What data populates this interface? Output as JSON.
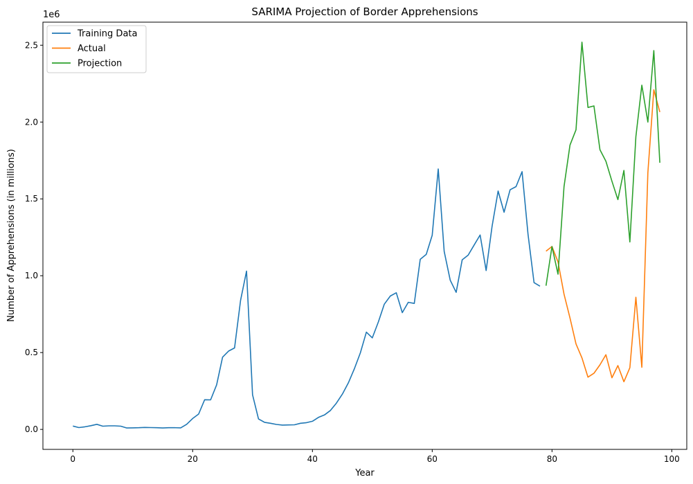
{
  "chart_data": {
    "type": "line",
    "title": "SARIMA Projection of Border Apprehensions",
    "xlabel": "Year",
    "ylabel": "Number of Apprehensions (in millions)",
    "y_offset_label": "1e6",
    "xlim": [
      -5,
      102.5
    ],
    "ylim": [
      -130000,
      2650000
    ],
    "xticks": [
      0,
      20,
      40,
      60,
      80,
      100
    ],
    "xtick_labels": [
      "0",
      "20",
      "40",
      "60",
      "80",
      "100"
    ],
    "yticks": [
      0,
      500000,
      1000000,
      1500000,
      2000000,
      2500000
    ],
    "ytick_labels": [
      "0.0",
      "0.5",
      "1.0",
      "1.5",
      "2.0",
      "2.5"
    ],
    "legend_position": "upper-left",
    "grid": false,
    "series": [
      {
        "name": "Training Data",
        "color": "#1f77b4",
        "x": [
          0,
          1,
          2,
          3,
          4,
          5,
          6,
          7,
          8,
          9,
          10,
          11,
          12,
          13,
          14,
          15,
          16,
          17,
          18,
          19,
          20,
          21,
          22,
          23,
          24,
          25,
          26,
          27,
          28,
          29,
          30,
          31,
          32,
          33,
          34,
          35,
          36,
          37,
          38,
          39,
          40,
          41,
          42,
          43,
          44,
          45,
          46,
          47,
          48,
          49,
          50,
          51,
          52,
          53,
          54,
          55,
          56,
          57,
          58,
          59,
          60,
          61,
          62,
          63,
          64,
          65,
          66,
          67,
          68,
          69,
          70,
          71,
          72,
          73,
          74,
          75,
          76,
          77,
          78
        ],
        "values": [
          22000,
          12000,
          17000,
          24000,
          33000,
          21000,
          23000,
          23000,
          21000,
          9000,
          10000,
          11000,
          13000,
          12000,
          11000,
          9000,
          11000,
          11000,
          10000,
          33000,
          71000,
          100000,
          193000,
          192000,
          290000,
          470000,
          510000,
          530000,
          840000,
          1030000,
          225000,
          68000,
          46000,
          40000,
          32000,
          28000,
          29000,
          30000,
          40000,
          44000,
          53000,
          78000,
          94000,
          123000,
          171000,
          230000,
          303000,
          395000,
          498000,
          633000,
          596000,
          699000,
          815000,
          868000,
          889000,
          760000,
          827000,
          820000,
          1107000,
          1139000,
          1263000,
          1695000,
          1158000,
          971000,
          892000,
          1103000,
          1134000,
          1200000,
          1265000,
          1034000,
          1322000,
          1551000,
          1413000,
          1559000,
          1580000,
          1677000,
          1270000,
          955000,
          932000
        ]
      },
      {
        "name": "Actual",
        "color": "#ff7f0e",
        "x": [
          79,
          80,
          81,
          82,
          83,
          84,
          85,
          86,
          87,
          88,
          89,
          90,
          91,
          92,
          93,
          94,
          95,
          96,
          97,
          98
        ],
        "values": [
          1160000,
          1190000,
          1090000,
          880000,
          725000,
          556000,
          465000,
          340000,
          365000,
          420000,
          486000,
          336000,
          415000,
          310000,
          401000,
          860000,
          404000,
          1670000,
          2210000,
          2065000
        ]
      },
      {
        "name": "Projection",
        "color": "#2ca02c",
        "x": [
          79,
          80,
          81,
          82,
          83,
          84,
          85,
          86,
          87,
          88,
          89,
          90,
          91,
          92,
          93,
          94,
          95,
          96,
          97,
          98
        ],
        "values": [
          935000,
          1190000,
          1010000,
          1580000,
          1850000,
          1950000,
          2520000,
          2095000,
          2105000,
          1820000,
          1745000,
          1615000,
          1495000,
          1685000,
          1220000,
          1905000,
          2240000,
          2000000,
          2465000,
          1735000
        ]
      }
    ]
  }
}
